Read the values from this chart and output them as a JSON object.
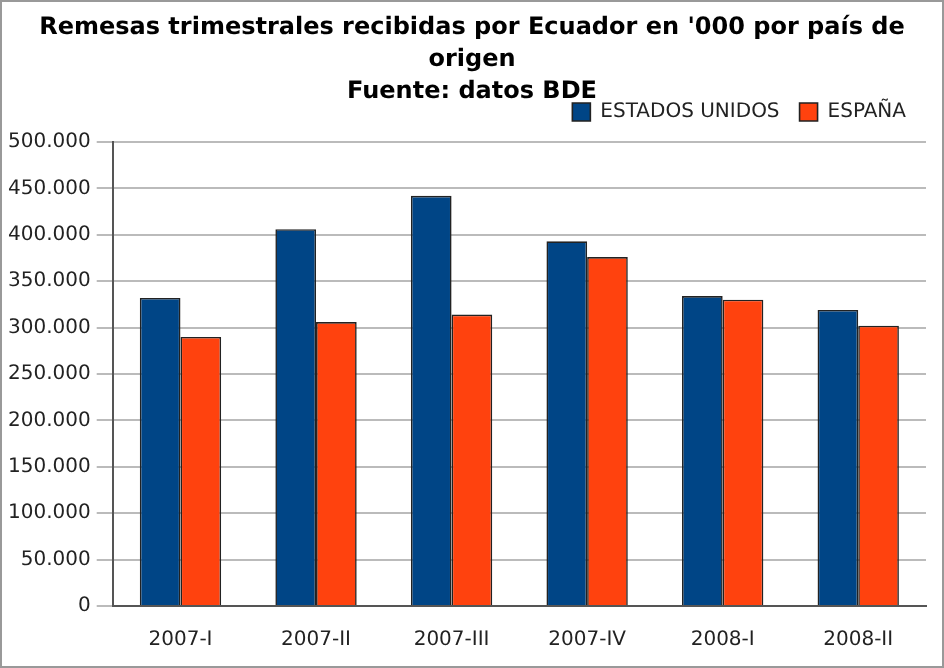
{
  "chart_data": {
    "type": "bar",
    "title": "Remesas trimestrales recibidas por Ecuador en '000 por país de origen",
    "subtitle": "Fuente: datos BDE",
    "categories": [
      "2007-I",
      "2007-II",
      "2007-III",
      "2007-IV",
      "2008-I",
      "2008-II"
    ],
    "series": [
      {
        "name": "ESTADOS UNIDOS",
        "color": "#004586",
        "values": [
          332000,
          406000,
          442000,
          393000,
          334000,
          319000
        ]
      },
      {
        "name": "ESPAÑA",
        "color": "#ff420e",
        "values": [
          290000,
          306000,
          314000,
          376000,
          330000,
          302000
        ]
      }
    ],
    "ylim": [
      0,
      500000
    ],
    "yticks": [
      {
        "value": 0,
        "label": "0"
      },
      {
        "value": 50000,
        "label": "50.000"
      },
      {
        "value": 100000,
        "label": "100.000"
      },
      {
        "value": 150000,
        "label": "150.000"
      },
      {
        "value": 200000,
        "label": "200.000"
      },
      {
        "value": 250000,
        "label": "250.000"
      },
      {
        "value": 300000,
        "label": "300.000"
      },
      {
        "value": 350000,
        "label": "350.000"
      },
      {
        "value": 400000,
        "label": "400.000"
      },
      {
        "value": 450000,
        "label": "450.000"
      },
      {
        "value": 500000,
        "label": "500.000"
      }
    ],
    "grid": "y",
    "legend": "top right"
  }
}
